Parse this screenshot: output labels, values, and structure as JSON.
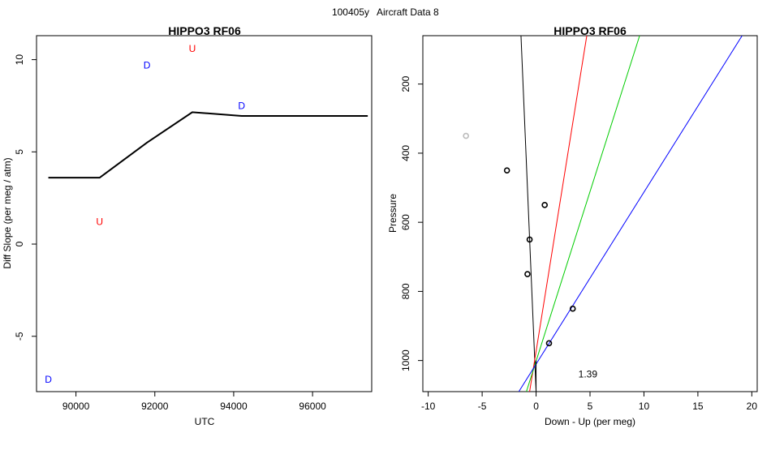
{
  "figure": {
    "title_code": "100405y",
    "title_text": "Aircraft Data 8"
  },
  "chart_data": [
    {
      "type": "line",
      "title": "HIPPO3 RF06",
      "xlabel": "UTC",
      "ylabel": "Diff Slope (per meg / atm)",
      "xlim": [
        89000,
        97500
      ],
      "ylim": [
        -8,
        11.3
      ],
      "xticks": [
        90000,
        92000,
        94000,
        96000
      ],
      "yticks": [
        -5,
        0,
        5,
        10
      ],
      "line": {
        "color": "#000000",
        "x": [
          89300,
          90600,
          91800,
          92950,
          94200,
          97400
        ],
        "y": [
          3.6,
          3.6,
          5.5,
          7.15,
          6.95,
          6.95
        ]
      },
      "markers": [
        {
          "label": "U",
          "x": 92950,
          "y": 10.6,
          "color": "#ff0000"
        },
        {
          "label": "D",
          "x": 91800,
          "y": 9.7,
          "color": "#0000ff"
        },
        {
          "label": "D",
          "x": 94200,
          "y": 7.5,
          "color": "#0000ff"
        },
        {
          "label": "U",
          "x": 90600,
          "y": 1.2,
          "color": "#ff0000"
        },
        {
          "label": "D",
          "x": 89300,
          "y": -7.35,
          "color": "#0000ff"
        }
      ],
      "grid": false
    },
    {
      "type": "scatter",
      "title": "HIPPO3 RF06",
      "xlabel": "Down - Up (per meg)",
      "ylabel": "Pressure",
      "xlim": [
        -10.5,
        20.5
      ],
      "ylim": [
        1090,
        60
      ],
      "y_reversed": true,
      "xticks": [
        -10,
        -5,
        0,
        5,
        10,
        15,
        20
      ],
      "yticks": [
        200,
        400,
        600,
        800,
        1000
      ],
      "points": [
        {
          "x": -6.5,
          "y": 350,
          "color": "#bbbbbb"
        },
        {
          "x": -2.7,
          "y": 450,
          "color": "#000000"
        },
        {
          "x": 0.8,
          "y": 550,
          "color": "#000000"
        },
        {
          "x": -0.6,
          "y": 650,
          "color": "#000000"
        },
        {
          "x": -0.8,
          "y": 750,
          "color": "#000000"
        },
        {
          "x": 3.4,
          "y": 850,
          "color": "#000000"
        },
        {
          "x": 1.2,
          "y": 950,
          "color": "#000000"
        }
      ],
      "lines": [
        {
          "color": "#000000",
          "x1": -1.4,
          "y1": 60,
          "x2": 0.0,
          "y2": 1090
        },
        {
          "color": "#ff0000",
          "x1": 4.7,
          "y1": 60,
          "x2": -0.6,
          "y2": 1090
        },
        {
          "color": "#00cc00",
          "x1": 9.6,
          "y1": 60,
          "x2": -0.9,
          "y2": 1090
        },
        {
          "color": "#0000ff",
          "x1": 19.1,
          "y1": 60,
          "x2": -1.6,
          "y2": 1090
        }
      ],
      "vline": {
        "x": 0,
        "y_from": 1000,
        "y_to": 1090,
        "color": "#000000"
      },
      "annotation": {
        "text": "1.39",
        "x": 4.8,
        "y": 1040
      },
      "grid": false
    }
  ]
}
